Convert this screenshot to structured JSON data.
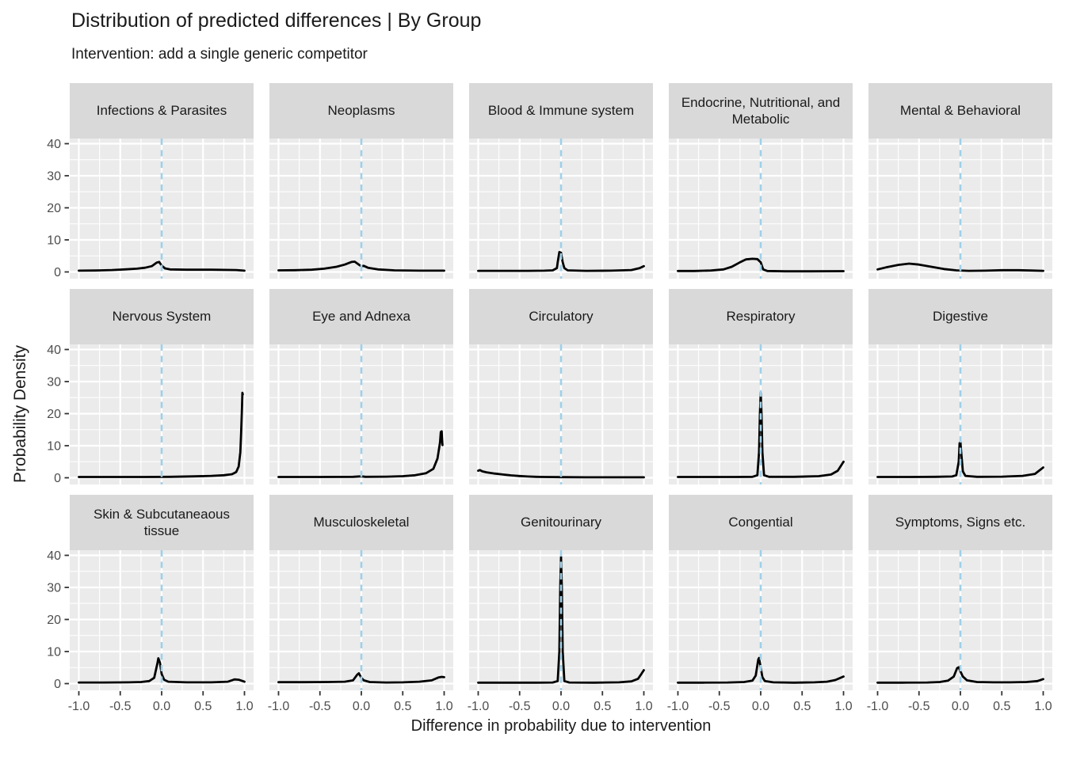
{
  "header": {
    "title": "Distribution of predicted differences | By Group",
    "subtitle": "Intervention: add a single generic competitor"
  },
  "style": {
    "panel_bg": "#EBEBEB",
    "strip_bg": "#D9D9D9",
    "grid_color": "#FFFFFF",
    "vline_color": "#9FD0E8",
    "curve_color": "#000000",
    "tick_mark_color": "#333333",
    "tick_label_color": "#4D4D4D",
    "text_color": "#1A1A1A"
  },
  "chart_data": {
    "type": "line",
    "subtype": "faceted-density",
    "title": "Distribution of predicted differences | By Group",
    "subtitle": "Intervention: add a single generic competitor",
    "xlabel": "Difference in probability due to intervention",
    "ylabel": "Probability Density",
    "facet_grid": [
      3,
      5
    ],
    "legend": "none",
    "grid": true,
    "x_ticks": [
      -1.0,
      -0.5,
      0.0,
      0.5,
      1.0
    ],
    "x_tick_labels": [
      "-1.0",
      "-0.5",
      "0.0",
      "0.5",
      "1.0"
    ],
    "x_minor_ticks": [
      -0.75,
      -0.25,
      0.25,
      0.75
    ],
    "y_ticks": [
      0,
      10,
      20,
      30,
      40
    ],
    "y_tick_labels": [
      "0",
      "10",
      "20",
      "30",
      "40"
    ],
    "y_minor_ticks": [
      5,
      15,
      25,
      35
    ],
    "xlim": [
      -1.11,
      1.11
    ],
    "ylim": [
      -2.1,
      41.6
    ],
    "reference_line_x": 0,
    "facets": [
      {
        "label": "Infections & Parasites",
        "points": [
          [
            -1,
            0.4
          ],
          [
            -0.8,
            0.45
          ],
          [
            -0.6,
            0.6
          ],
          [
            -0.45,
            0.8
          ],
          [
            -0.3,
            1.0
          ],
          [
            -0.2,
            1.3
          ],
          [
            -0.12,
            1.8
          ],
          [
            -0.06,
            2.9
          ],
          [
            -0.03,
            3.1
          ],
          [
            0,
            2.0
          ],
          [
            0.04,
            1.1
          ],
          [
            0.1,
            0.8
          ],
          [
            0.3,
            0.7
          ],
          [
            0.6,
            0.7
          ],
          [
            0.9,
            0.6
          ],
          [
            1,
            0.4
          ]
        ]
      },
      {
        "label": "Neoplasms",
        "points": [
          [
            -1,
            0.5
          ],
          [
            -0.8,
            0.55
          ],
          [
            -0.6,
            0.7
          ],
          [
            -0.45,
            1.0
          ],
          [
            -0.3,
            1.6
          ],
          [
            -0.2,
            2.3
          ],
          [
            -0.12,
            3.1
          ],
          [
            -0.08,
            3.2
          ],
          [
            -0.02,
            2.1
          ],
          [
            0,
            1.8
          ],
          [
            0.03,
            1.9
          ],
          [
            0.08,
            1.3
          ],
          [
            0.2,
            0.8
          ],
          [
            0.4,
            0.5
          ],
          [
            0.7,
            0.4
          ],
          [
            1,
            0.4
          ]
        ]
      },
      {
        "label": "Blood & Immune system",
        "points": [
          [
            -1,
            0.35
          ],
          [
            -0.7,
            0.35
          ],
          [
            -0.4,
            0.35
          ],
          [
            -0.2,
            0.4
          ],
          [
            -0.1,
            0.5
          ],
          [
            -0.05,
            1.2
          ],
          [
            -0.04,
            3.0
          ],
          [
            -0.02,
            6.2
          ],
          [
            0,
            6.0
          ],
          [
            0.02,
            3.0
          ],
          [
            0.04,
            1.2
          ],
          [
            0.08,
            0.5
          ],
          [
            0.3,
            0.35
          ],
          [
            0.6,
            0.4
          ],
          [
            0.85,
            0.6
          ],
          [
            0.95,
            1.2
          ],
          [
            1,
            1.8
          ]
        ]
      },
      {
        "label": "Endocrine, Nutritional, and Metabolic",
        "points": [
          [
            -1,
            0.3
          ],
          [
            -0.8,
            0.3
          ],
          [
            -0.6,
            0.45
          ],
          [
            -0.45,
            0.8
          ],
          [
            -0.35,
            1.6
          ],
          [
            -0.25,
            3.0
          ],
          [
            -0.18,
            3.9
          ],
          [
            -0.1,
            4.1
          ],
          [
            -0.04,
            4.0
          ],
          [
            0,
            3.0
          ],
          [
            0.03,
            0.8
          ],
          [
            0.08,
            0.3
          ],
          [
            0.3,
            0.2
          ],
          [
            0.6,
            0.2
          ],
          [
            1,
            0.25
          ]
        ]
      },
      {
        "label": "Mental & Behavioral",
        "points": [
          [
            -1,
            0.8
          ],
          [
            -0.9,
            1.4
          ],
          [
            -0.75,
            2.2
          ],
          [
            -0.62,
            2.6
          ],
          [
            -0.5,
            2.3
          ],
          [
            -0.35,
            1.6
          ],
          [
            -0.2,
            0.9
          ],
          [
            -0.05,
            0.5
          ],
          [
            0.1,
            0.35
          ],
          [
            0.3,
            0.4
          ],
          [
            0.5,
            0.55
          ],
          [
            0.7,
            0.55
          ],
          [
            0.85,
            0.45
          ],
          [
            1,
            0.35
          ]
        ]
      },
      {
        "label": "Nervous System",
        "points": [
          [
            -1,
            0.25
          ],
          [
            -0.6,
            0.25
          ],
          [
            -0.2,
            0.25
          ],
          [
            0.1,
            0.3
          ],
          [
            0.4,
            0.45
          ],
          [
            0.6,
            0.6
          ],
          [
            0.75,
            0.8
          ],
          [
            0.85,
            1.1
          ],
          [
            0.9,
            1.8
          ],
          [
            0.93,
            3.5
          ],
          [
            0.95,
            8
          ],
          [
            0.96,
            14
          ],
          [
            0.97,
            22
          ],
          [
            0.975,
            26.5
          ],
          [
            0.98,
            26.0
          ]
        ]
      },
      {
        "label": "Eye and Adnexa",
        "points": [
          [
            -1,
            0.25
          ],
          [
            -0.5,
            0.25
          ],
          [
            -0.1,
            0.3
          ],
          [
            0,
            0.45
          ],
          [
            0.05,
            0.3
          ],
          [
            0.3,
            0.35
          ],
          [
            0.5,
            0.5
          ],
          [
            0.65,
            0.8
          ],
          [
            0.78,
            1.4
          ],
          [
            0.87,
            2.8
          ],
          [
            0.92,
            6
          ],
          [
            0.95,
            11
          ],
          [
            0.96,
            14.3
          ],
          [
            0.97,
            14.5
          ],
          [
            0.975,
            12
          ],
          [
            0.98,
            10.2
          ]
        ]
      },
      {
        "label": "Circulatory",
        "points": [
          [
            -1,
            2.2
          ],
          [
            -0.98,
            2.4
          ],
          [
            -0.95,
            2.0
          ],
          [
            -0.9,
            1.7
          ],
          [
            -0.8,
            1.3
          ],
          [
            -0.7,
            1.0
          ],
          [
            -0.6,
            0.75
          ],
          [
            -0.5,
            0.55
          ],
          [
            -0.4,
            0.4
          ],
          [
            -0.3,
            0.3
          ],
          [
            -0.2,
            0.25
          ],
          [
            0,
            0.2
          ],
          [
            0.3,
            0.15
          ],
          [
            0.6,
            0.15
          ],
          [
            1,
            0.15
          ]
        ]
      },
      {
        "label": "Respiratory",
        "points": [
          [
            -1,
            0.25
          ],
          [
            -0.6,
            0.25
          ],
          [
            -0.3,
            0.25
          ],
          [
            -0.1,
            0.3
          ],
          [
            -0.04,
            0.8
          ],
          [
            -0.02,
            8
          ],
          [
            -0.01,
            20
          ],
          [
            0,
            26.5
          ],
          [
            0.01,
            20
          ],
          [
            0.02,
            8
          ],
          [
            0.04,
            0.8
          ],
          [
            0.1,
            0.3
          ],
          [
            0.4,
            0.3
          ],
          [
            0.7,
            0.5
          ],
          [
            0.85,
            1.0
          ],
          [
            0.93,
            2.2
          ],
          [
            1,
            5.0
          ]
        ]
      },
      {
        "label": "Digestive",
        "points": [
          [
            -1,
            0.25
          ],
          [
            -0.6,
            0.25
          ],
          [
            -0.3,
            0.3
          ],
          [
            -0.1,
            0.4
          ],
          [
            -0.05,
            0.8
          ],
          [
            -0.02,
            5
          ],
          [
            -0.01,
            10.8
          ],
          [
            0,
            11.2
          ],
          [
            0.01,
            8
          ],
          [
            0.03,
            2
          ],
          [
            0.06,
            0.6
          ],
          [
            0.2,
            0.3
          ],
          [
            0.5,
            0.35
          ],
          [
            0.75,
            0.6
          ],
          [
            0.9,
            1.2
          ],
          [
            1,
            3.2
          ]
        ]
      },
      {
        "label": "Skin & Subcutaneaous tissue",
        "points": [
          [
            -1,
            0.35
          ],
          [
            -0.7,
            0.35
          ],
          [
            -0.4,
            0.4
          ],
          [
            -0.25,
            0.5
          ],
          [
            -0.15,
            0.8
          ],
          [
            -0.09,
            1.8
          ],
          [
            -0.05,
            6.5
          ],
          [
            -0.04,
            7.9
          ],
          [
            -0.02,
            6.5
          ],
          [
            0,
            3.0
          ],
          [
            0.03,
            1.2
          ],
          [
            0.08,
            0.6
          ],
          [
            0.3,
            0.4
          ],
          [
            0.6,
            0.4
          ],
          [
            0.8,
            0.6
          ],
          [
            0.88,
            1.3
          ],
          [
            0.93,
            1.2
          ],
          [
            1,
            0.6
          ]
        ]
      },
      {
        "label": "Musculoskeletal",
        "points": [
          [
            -1,
            0.45
          ],
          [
            -0.7,
            0.45
          ],
          [
            -0.4,
            0.5
          ],
          [
            -0.2,
            0.6
          ],
          [
            -0.1,
            1.0
          ],
          [
            -0.05,
            2.8
          ],
          [
            -0.03,
            3.2
          ],
          [
            0,
            1.8
          ],
          [
            0.03,
            1.0
          ],
          [
            0.1,
            0.5
          ],
          [
            0.3,
            0.35
          ],
          [
            0.5,
            0.4
          ],
          [
            0.7,
            0.6
          ],
          [
            0.85,
            1.0
          ],
          [
            0.93,
            1.9
          ],
          [
            0.97,
            2.1
          ],
          [
            1,
            2.0
          ]
        ]
      },
      {
        "label": "Genitourinary",
        "points": [
          [
            -1,
            0.3
          ],
          [
            -0.6,
            0.3
          ],
          [
            -0.3,
            0.3
          ],
          [
            -0.1,
            0.35
          ],
          [
            -0.04,
            0.8
          ],
          [
            -0.02,
            10
          ],
          [
            -0.01,
            30
          ],
          [
            0,
            39.5
          ],
          [
            0.01,
            30
          ],
          [
            0.02,
            10
          ],
          [
            0.04,
            0.8
          ],
          [
            0.1,
            0.35
          ],
          [
            0.4,
            0.3
          ],
          [
            0.7,
            0.4
          ],
          [
            0.85,
            0.7
          ],
          [
            0.93,
            1.5
          ],
          [
            0.97,
            3.0
          ],
          [
            1,
            4.2
          ]
        ]
      },
      {
        "label": "Congential",
        "points": [
          [
            -1,
            0.3
          ],
          [
            -0.7,
            0.3
          ],
          [
            -0.4,
            0.35
          ],
          [
            -0.2,
            0.5
          ],
          [
            -0.1,
            0.9
          ],
          [
            -0.06,
            2.5
          ],
          [
            -0.03,
            7.5
          ],
          [
            -0.02,
            8.0
          ],
          [
            0,
            5.0
          ],
          [
            0.02,
            2.0
          ],
          [
            0.05,
            0.8
          ],
          [
            0.15,
            0.4
          ],
          [
            0.4,
            0.3
          ],
          [
            0.65,
            0.4
          ],
          [
            0.8,
            0.6
          ],
          [
            0.9,
            1.1
          ],
          [
            1,
            2.2
          ]
        ]
      },
      {
        "label": "Symptoms, Signs etc.",
        "points": [
          [
            -1,
            0.3
          ],
          [
            -0.7,
            0.3
          ],
          [
            -0.4,
            0.35
          ],
          [
            -0.25,
            0.5
          ],
          [
            -0.15,
            0.9
          ],
          [
            -0.08,
            2.2
          ],
          [
            -0.04,
            4.8
          ],
          [
            -0.02,
            5.1
          ],
          [
            0,
            3.8
          ],
          [
            0.03,
            2.2
          ],
          [
            0.08,
            1.0
          ],
          [
            0.2,
            0.5
          ],
          [
            0.4,
            0.4
          ],
          [
            0.6,
            0.4
          ],
          [
            0.8,
            0.5
          ],
          [
            0.93,
            0.8
          ],
          [
            1,
            1.4
          ]
        ]
      }
    ]
  }
}
